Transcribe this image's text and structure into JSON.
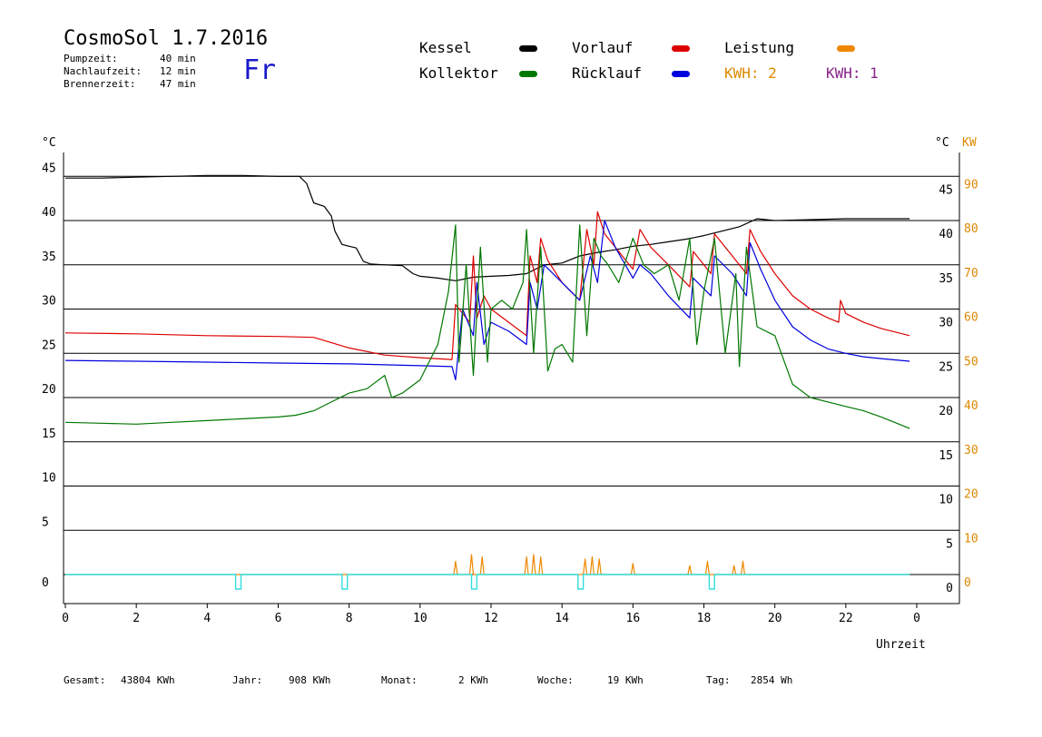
{
  "header": {
    "title": "CosmoSol 1.7.2016",
    "weekday": "Fr",
    "stats": [
      {
        "label": "Pumpzeit:",
        "value": "40 min"
      },
      {
        "label": "Nachlaufzeit:",
        "value": "12 min"
      },
      {
        "label": "Brennerzeit:",
        "value": "47 min"
      }
    ]
  },
  "legend": {
    "items": [
      {
        "label": "Kessel",
        "color": "#000000"
      },
      {
        "label": "Vorlauf",
        "color": "#dd0000"
      },
      {
        "label": "Leistung",
        "color": "#ee8800"
      },
      {
        "label": "Kollektor",
        "color": "#007700"
      },
      {
        "label": "Rücklauf",
        "color": "#0000dd"
      }
    ],
    "kwh_2": {
      "label": "KWH: 2",
      "color": "#dd8800"
    },
    "kwh_1": {
      "label": "KWH: 1",
      "color": "#882288"
    }
  },
  "footer": [
    {
      "label": "Gesamt:",
      "value": "43804 KWh"
    },
    {
      "label": "Jahr:",
      "value": "908 KWh"
    },
    {
      "label": "Monat:",
      "value": "2 KWh"
    },
    {
      "label": "Woche:",
      "value": "19 KWh"
    },
    {
      "label": "Tag:",
      "value": "2854 Wh"
    }
  ],
  "chart_data": {
    "type": "line",
    "xlabel": "Uhrzeit",
    "ylabel_left": "°C",
    "ylabel_right_temp": "°C",
    "ylabel_right_power": "KW",
    "xlim": [
      0,
      24
    ],
    "ylim": [
      0,
      45
    ],
    "ylim_power": [
      0,
      90
    ],
    "x_ticks": [
      "0",
      "2",
      "4",
      "6",
      "8",
      "10",
      "12",
      "14",
      "16",
      "18",
      "20",
      "22",
      "0"
    ],
    "y_ticks": [
      0,
      5,
      10,
      15,
      20,
      25,
      30,
      35,
      40,
      45
    ],
    "y_ticks_power": [
      0,
      10,
      20,
      30,
      40,
      50,
      60,
      70,
      80,
      90
    ],
    "grid": "horizontal",
    "series": [
      {
        "name": "Kessel",
        "color": "#000000",
        "x": [
          0,
          1,
          2,
          3,
          4,
          5,
          6,
          6.6,
          6.8,
          7.0,
          7.3,
          7.5,
          7.6,
          7.8,
          8.0,
          8.2,
          8.4,
          8.6,
          9.0,
          9.5,
          9.8,
          10.0,
          10.5,
          11.0,
          11.5,
          12.0,
          12.5,
          13.0,
          13.5,
          14.0,
          14.5,
          15.0,
          15.5,
          16.0,
          16.5,
          17.0,
          17.5,
          18.0,
          18.5,
          19.0,
          19.5,
          20.0,
          21.0,
          22.0,
          23.0,
          23.8
        ],
        "values": [
          44.8,
          44.8,
          44.9,
          45.0,
          45.1,
          45.1,
          45.0,
          45.0,
          44.2,
          42.0,
          41.6,
          40.5,
          38.8,
          37.3,
          37.1,
          36.9,
          35.4,
          35.1,
          35.0,
          34.9,
          34.0,
          33.7,
          33.5,
          33.2,
          33.6,
          33.7,
          33.8,
          34.0,
          35.0,
          35.2,
          36.0,
          36.4,
          36.7,
          37.1,
          37.3,
          37.6,
          37.9,
          38.3,
          38.8,
          39.3,
          40.2,
          40.0,
          40.1,
          40.2,
          40.2,
          40.2
        ]
      },
      {
        "name": "Vorlauf",
        "color": "#dd0000",
        "x": [
          0,
          2,
          4,
          6,
          7,
          8,
          9,
          10,
          10.9,
          11.0,
          11.4,
          11.5,
          11.6,
          11.8,
          12.0,
          12.5,
          13.0,
          13.1,
          13.3,
          13.4,
          13.6,
          14.0,
          14.5,
          14.7,
          14.9,
          15.0,
          15.2,
          15.5,
          16.0,
          16.2,
          16.5,
          17.0,
          17.6,
          17.7,
          18.2,
          18.3,
          18.8,
          19.2,
          19.3,
          19.6,
          20.0,
          20.5,
          21.0,
          21.5,
          21.8,
          21.85,
          22.0,
          22.5,
          23.0,
          23.8
        ],
        "values": [
          27.3,
          27.2,
          27.0,
          26.9,
          26.8,
          25.6,
          24.8,
          24.5,
          24.3,
          30.5,
          28.5,
          36.0,
          29.0,
          31.5,
          30.0,
          28.5,
          27.0,
          36.0,
          33.0,
          38.0,
          35.5,
          33.0,
          31.0,
          39.0,
          35.0,
          41.0,
          38.5,
          37.0,
          34.5,
          39.0,
          37.0,
          35.0,
          32.5,
          36.5,
          34.0,
          38.5,
          36.0,
          34.0,
          39.0,
          36.5,
          34.0,
          31.5,
          30.0,
          29.0,
          28.5,
          31.0,
          29.5,
          28.5,
          27.8,
          27.0
        ]
      },
      {
        "name": "Rücklauf",
        "color": "#0000dd",
        "x": [
          0,
          2,
          4,
          6,
          8,
          10,
          10.9,
          11.0,
          11.2,
          11.5,
          11.6,
          11.8,
          12.0,
          12.5,
          13.0,
          13.1,
          13.3,
          13.5,
          14.0,
          14.5,
          14.8,
          15.0,
          15.2,
          15.5,
          16.0,
          16.2,
          16.5,
          17.0,
          17.6,
          17.7,
          18.2,
          18.3,
          18.8,
          19.2,
          19.3,
          19.6,
          20.0,
          20.5,
          21.0,
          21.5,
          22.0,
          22.5,
          23.0,
          23.8
        ],
        "values": [
          24.2,
          24.1,
          24.0,
          23.9,
          23.8,
          23.6,
          23.5,
          22.0,
          30.0,
          27.0,
          33.0,
          26.0,
          28.5,
          27.5,
          26.0,
          33.0,
          30.0,
          35.0,
          33.0,
          31.0,
          36.0,
          33.0,
          40.0,
          37.0,
          33.5,
          35.0,
          34.0,
          31.5,
          29.0,
          33.5,
          31.5,
          36.0,
          34.0,
          31.5,
          37.5,
          34.5,
          31.0,
          28.0,
          26.5,
          25.5,
          25.0,
          24.6,
          24.4,
          24.1
        ]
      },
      {
        "name": "Kollektor",
        "color": "#007700",
        "x": [
          0,
          1,
          2,
          3,
          4,
          5,
          6,
          6.5,
          7.0,
          7.5,
          8.0,
          8.5,
          9.0,
          9.2,
          9.5,
          10.0,
          10.5,
          10.8,
          11.0,
          11.1,
          11.3,
          11.5,
          11.7,
          11.9,
          12.0,
          12.3,
          12.6,
          12.9,
          13.0,
          13.2,
          13.4,
          13.6,
          13.8,
          14.0,
          14.3,
          14.5,
          14.7,
          14.9,
          15.1,
          15.3,
          15.6,
          16.0,
          16.3,
          16.6,
          17.0,
          17.3,
          17.6,
          17.8,
          18.0,
          18.3,
          18.6,
          18.9,
          19.0,
          19.2,
          19.5,
          20.0,
          20.5,
          21.0,
          21.5,
          22.0,
          22.5,
          23.0,
          23.5,
          23.8
        ],
        "values": [
          17.2,
          17.1,
          17.0,
          17.2,
          17.4,
          17.6,
          17.8,
          18.0,
          18.5,
          19.5,
          20.5,
          21.0,
          22.5,
          20.0,
          20.5,
          22.0,
          26.0,
          32.0,
          39.5,
          24.0,
          35.0,
          22.5,
          37.0,
          24.0,
          30.0,
          31.0,
          30.0,
          33.0,
          39.0,
          25.0,
          37.0,
          23.0,
          25.5,
          26.0,
          24.0,
          39.5,
          27.0,
          38.0,
          36.0,
          35.0,
          33.0,
          38.0,
          35.0,
          34.0,
          35.0,
          31.0,
          38.0,
          26.0,
          32.0,
          38.0,
          25.0,
          34.0,
          23.5,
          37.0,
          28.0,
          27.0,
          21.5,
          20.0,
          19.5,
          19.0,
          18.5,
          17.8,
          17.0,
          16.5
        ]
      },
      {
        "name": "Leistung",
        "color": "#ee8800",
        "x": [
          0,
          10.95,
          11.0,
          11.05,
          11.4,
          11.45,
          11.5,
          11.7,
          11.75,
          11.8,
          12.95,
          13.0,
          13.05,
          13.15,
          13.2,
          13.25,
          13.35,
          13.4,
          13.45,
          14.6,
          14.65,
          14.7,
          14.8,
          14.85,
          14.9,
          15.0,
          15.05,
          15.1,
          15.95,
          16.0,
          16.05,
          17.55,
          17.6,
          17.65,
          18.05,
          18.1,
          18.15,
          18.8,
          18.85,
          18.9,
          19.05,
          19.1,
          19.15,
          23.8
        ],
        "values": [
          0,
          0,
          3.0,
          0,
          0,
          4.5,
          0,
          0,
          4.0,
          0,
          0,
          4.0,
          0,
          0,
          4.5,
          0,
          0,
          4.0,
          0,
          0,
          3.5,
          0,
          0,
          4.0,
          0,
          0,
          3.5,
          0,
          0,
          2.5,
          0,
          0,
          2.0,
          0,
          0,
          3.0,
          0,
          0,
          2.0,
          0,
          0,
          3.0,
          0,
          0
        ]
      },
      {
        "name": "Pumpe",
        "color": "#33dddd",
        "x": [
          0,
          4.8,
          4.8,
          4.95,
          4.95,
          7.8,
          7.8,
          7.95,
          7.95,
          11.45,
          11.45,
          11.6,
          11.6,
          14.45,
          14.45,
          14.6,
          14.6,
          18.15,
          18.15,
          18.3,
          18.3,
          23.8
        ],
        "values": [
          0,
          0,
          -1.6,
          -1.6,
          0,
          0,
          -1.6,
          -1.6,
          0,
          0,
          -1.6,
          -1.6,
          0,
          0,
          -1.6,
          -1.6,
          0,
          0,
          -1.6,
          -1.6,
          0,
          0
        ]
      }
    ]
  }
}
